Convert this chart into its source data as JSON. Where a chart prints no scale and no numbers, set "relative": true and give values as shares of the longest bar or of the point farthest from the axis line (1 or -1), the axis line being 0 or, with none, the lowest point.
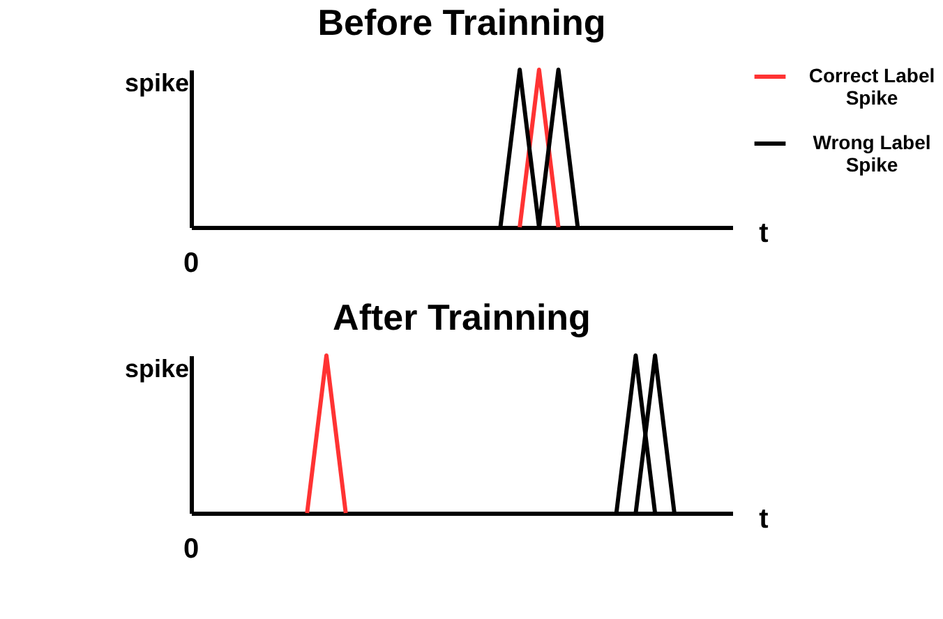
{
  "chart_data": [
    {
      "type": "line",
      "title": "Before Trainning",
      "xlabel": "t",
      "ylabel": "spike",
      "relative": true,
      "annotations": [
        "0"
      ],
      "legend": "top right",
      "categories": [
        null,
        null,
        null,
        null,
        null,
        null,
        null,
        null,
        null,
        null,
        null,
        null,
        null,
        null,
        null,
        null,
        null,
        null,
        null,
        null,
        null,
        null,
        null,
        null,
        null,
        null,
        null,
        null,
        null
      ],
      "series": [
        {
          "name": "Correct Label Spike",
          "color": "#ff3333",
          "values": [
            null,
            null,
            null,
            null,
            null,
            null,
            null,
            null,
            null,
            null,
            null,
            null,
            null,
            null,
            null,
            null,
            null,
            0,
            1,
            0,
            null,
            null,
            null,
            null,
            null,
            null,
            null,
            null,
            null
          ]
        },
        {
          "name": "Wrong Label Spike",
          "color": "#000000",
          "values": [
            null,
            null,
            null,
            null,
            null,
            null,
            null,
            null,
            null,
            null,
            null,
            null,
            null,
            null,
            null,
            null,
            0,
            1,
            0,
            1,
            0,
            null,
            null,
            null,
            null,
            null,
            null,
            null,
            null
          ]
        }
      ]
    },
    {
      "type": "line",
      "title": "After Trainning",
      "xlabel": "t",
      "ylabel": "spike",
      "relative": true,
      "annotations": [
        "0"
      ],
      "categories": [
        null,
        null,
        null,
        null,
        null,
        null,
        null,
        null,
        null,
        null,
        null,
        null,
        null,
        null,
        null,
        null,
        null,
        null,
        null,
        null,
        null,
        null,
        null,
        null,
        null,
        null,
        null,
        null,
        null
      ],
      "series": [
        {
          "color": "#ff3333",
          "values": [
            null,
            null,
            null,
            null,
            null,
            null,
            0,
            1,
            0,
            null,
            null,
            null,
            null,
            null,
            null,
            null,
            null,
            null,
            null,
            null,
            null,
            null,
            null,
            null,
            null,
            null,
            null,
            null,
            null
          ]
        },
        {
          "color": "#000000",
          "values": [
            null,
            null,
            null,
            null,
            null,
            null,
            null,
            null,
            null,
            null,
            null,
            null,
            null,
            null,
            null,
            null,
            null,
            null,
            null,
            null,
            null,
            null,
            0,
            1,
            0,
            null,
            null,
            null,
            null
          ]
        },
        {
          "color": "#000000",
          "values": [
            null,
            null,
            null,
            null,
            null,
            null,
            null,
            null,
            null,
            null,
            null,
            null,
            null,
            null,
            null,
            null,
            null,
            null,
            null,
            null,
            null,
            null,
            null,
            0,
            1,
            0,
            null,
            null,
            null
          ]
        }
      ]
    }
  ]
}
